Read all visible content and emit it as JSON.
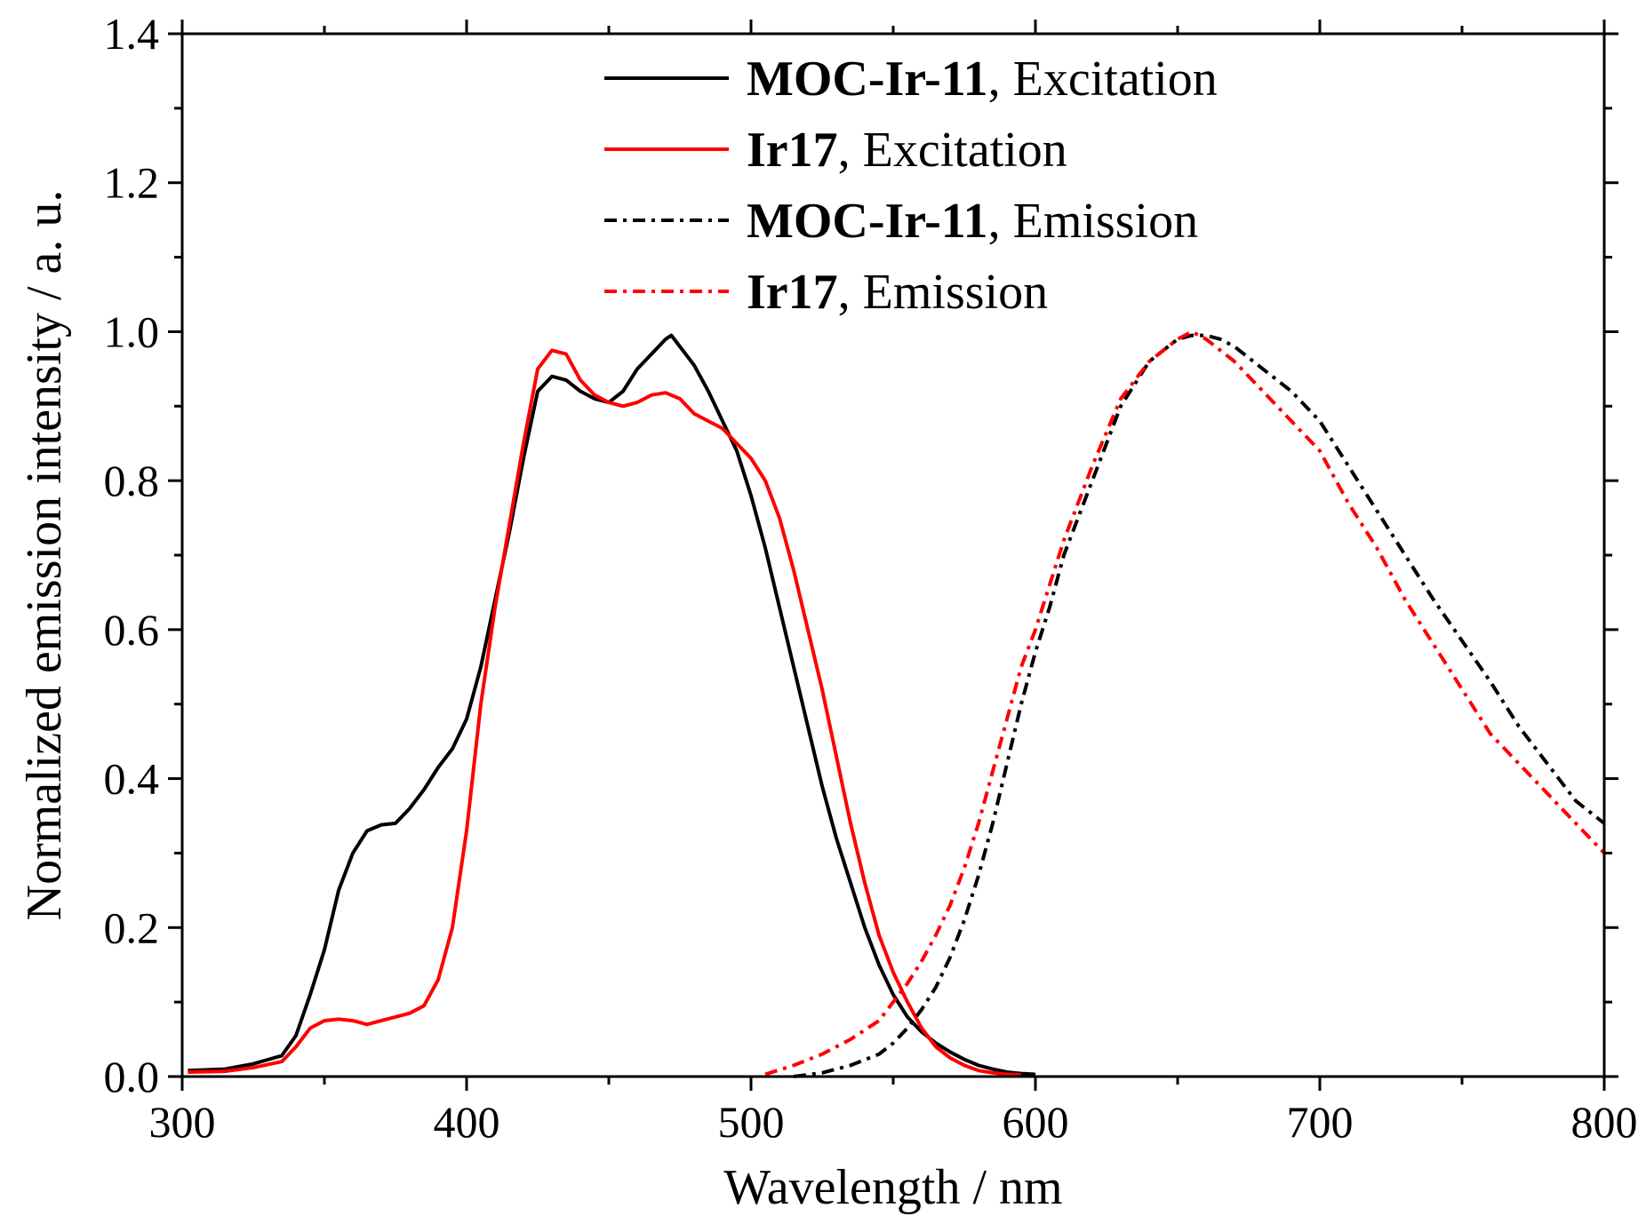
{
  "chart_data": {
    "type": "line",
    "title": "",
    "xlabel": "Wavelength / nm",
    "ylabel": "Normalized emission intensity / a. u.",
    "xlim": [
      300,
      800
    ],
    "ylim": [
      0.0,
      1.4
    ],
    "xticks": [
      300,
      400,
      500,
      600,
      700,
      800
    ],
    "xtick_labels": [
      "300",
      "400",
      "500",
      "600",
      "700",
      "800"
    ],
    "yticks": [
      0.0,
      0.2,
      0.4,
      0.6,
      0.8,
      1.0,
      1.2,
      1.4
    ],
    "ytick_labels": [
      "0.0",
      "0.2",
      "0.4",
      "0.6",
      "0.8",
      "1.0",
      "1.2",
      "1.4"
    ],
    "grid": false,
    "legend_position": "top-center",
    "series": [
      {
        "name": "MOC-Ir-11, Excitation",
        "label_bold": "MOC-Ir-11",
        "label_rest": ", Excitation",
        "color": "#000000",
        "style": "solid",
        "x": [
          302,
          315,
          325,
          335,
          340,
          345,
          350,
          355,
          360,
          365,
          370,
          375,
          380,
          385,
          390,
          395,
          400,
          405,
          410,
          415,
          420,
          425,
          430,
          435,
          440,
          445,
          450,
          455,
          460,
          465,
          470,
          472,
          475,
          480,
          485,
          490,
          495,
          500,
          505,
          510,
          515,
          520,
          525,
          530,
          535,
          540,
          545,
          550,
          555,
          560,
          565,
          570,
          575,
          580,
          585,
          590,
          595,
          600
        ],
        "y": [
          0.008,
          0.01,
          0.017,
          0.028,
          0.055,
          0.11,
          0.17,
          0.25,
          0.3,
          0.33,
          0.338,
          0.34,
          0.36,
          0.385,
          0.415,
          0.44,
          0.48,
          0.55,
          0.64,
          0.73,
          0.83,
          0.92,
          0.94,
          0.935,
          0.92,
          0.91,
          0.905,
          0.92,
          0.95,
          0.97,
          0.99,
          0.995,
          0.98,
          0.955,
          0.92,
          0.88,
          0.84,
          0.78,
          0.71,
          0.63,
          0.55,
          0.47,
          0.39,
          0.32,
          0.26,
          0.2,
          0.15,
          0.11,
          0.08,
          0.06,
          0.045,
          0.033,
          0.023,
          0.015,
          0.01,
          0.006,
          0.004,
          0.003
        ]
      },
      {
        "name": "Ir17, Excitation",
        "label_bold": "Ir17",
        "label_rest": ", Excitation",
        "color": "#ff0000",
        "style": "solid",
        "x": [
          302,
          315,
          325,
          335,
          340,
          345,
          350,
          355,
          360,
          365,
          370,
          375,
          380,
          385,
          390,
          395,
          400,
          405,
          410,
          415,
          420,
          425,
          430,
          435,
          440,
          445,
          450,
          455,
          460,
          465,
          470,
          475,
          480,
          485,
          490,
          495,
          500,
          505,
          510,
          515,
          520,
          525,
          530,
          535,
          540,
          545,
          550,
          555,
          560,
          565,
          570,
          575,
          580,
          585,
          590,
          595
        ],
        "y": [
          0.006,
          0.007,
          0.012,
          0.02,
          0.04,
          0.065,
          0.075,
          0.077,
          0.075,
          0.07,
          0.075,
          0.08,
          0.085,
          0.095,
          0.13,
          0.2,
          0.33,
          0.5,
          0.63,
          0.74,
          0.85,
          0.95,
          0.975,
          0.97,
          0.935,
          0.915,
          0.905,
          0.9,
          0.905,
          0.915,
          0.918,
          0.91,
          0.89,
          0.88,
          0.87,
          0.85,
          0.83,
          0.8,
          0.75,
          0.68,
          0.6,
          0.52,
          0.43,
          0.34,
          0.26,
          0.19,
          0.14,
          0.1,
          0.065,
          0.04,
          0.025,
          0.015,
          0.008,
          0.005,
          0.003,
          0.002
        ]
      },
      {
        "name": "MOC-Ir-11, Emission",
        "label_bold": "MOC-Ir-11",
        "label_rest": ", Emission",
        "color": "#000000",
        "style": "dashdot",
        "x": [
          515,
          525,
          535,
          545,
          550,
          555,
          560,
          565,
          570,
          575,
          580,
          585,
          590,
          595,
          600,
          605,
          610,
          620,
          630,
          640,
          650,
          655,
          660,
          665,
          670,
          680,
          690,
          700,
          710,
          720,
          730,
          740,
          750,
          760,
          770,
          780,
          790,
          800
        ],
        "y": [
          0.0,
          0.005,
          0.015,
          0.03,
          0.045,
          0.065,
          0.09,
          0.12,
          0.16,
          0.21,
          0.27,
          0.34,
          0.42,
          0.5,
          0.57,
          0.63,
          0.7,
          0.8,
          0.9,
          0.96,
          0.99,
          0.995,
          0.995,
          0.99,
          0.98,
          0.95,
          0.92,
          0.88,
          0.82,
          0.76,
          0.7,
          0.64,
          0.585,
          0.53,
          0.47,
          0.42,
          0.37,
          0.34
        ]
      },
      {
        "name": "Ir17, Emission",
        "label_bold": "Ir17",
        "label_rest": ", Emission",
        "color": "#ff0000",
        "style": "dashdot",
        "x": [
          505,
          515,
          525,
          535,
          545,
          550,
          555,
          560,
          565,
          570,
          575,
          580,
          585,
          590,
          595,
          600,
          605,
          610,
          620,
          630,
          640,
          650,
          655,
          660,
          670,
          680,
          690,
          700,
          710,
          720,
          730,
          740,
          750,
          760,
          770,
          780,
          790,
          800
        ],
        "y": [
          0.003,
          0.015,
          0.03,
          0.05,
          0.075,
          0.1,
          0.125,
          0.155,
          0.19,
          0.23,
          0.28,
          0.34,
          0.41,
          0.48,
          0.55,
          0.6,
          0.66,
          0.72,
          0.82,
          0.91,
          0.96,
          0.99,
          1.0,
          0.99,
          0.96,
          0.92,
          0.88,
          0.84,
          0.77,
          0.71,
          0.64,
          0.58,
          0.52,
          0.46,
          0.42,
          0.38,
          0.34,
          0.3
        ]
      }
    ]
  }
}
